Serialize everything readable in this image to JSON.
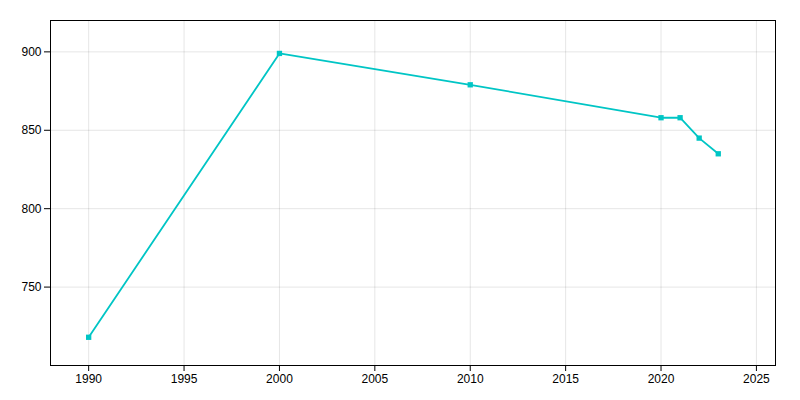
{
  "chart_data": {
    "type": "line",
    "x": [
      1990,
      2000,
      2010,
      2020,
      2021,
      2022,
      2023
    ],
    "values": [
      718,
      899,
      879,
      858,
      858,
      845,
      835
    ],
    "color": "#00C5C5",
    "marker": "square",
    "xlim": [
      1988,
      2026
    ],
    "ylim": [
      700,
      920
    ],
    "xticks": [
      1990,
      1995,
      2000,
      2005,
      2010,
      2015,
      2020,
      2025
    ],
    "yticks": [
      750,
      800,
      850,
      900
    ],
    "grid": true
  }
}
